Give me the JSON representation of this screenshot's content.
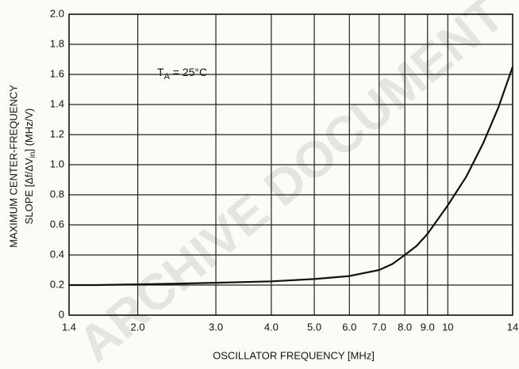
{
  "chart_data": {
    "type": "line",
    "xlabel": "OSCILLATOR FREQUENCY [MHz]",
    "ylabel": {
      "line1": "MAXIMUM CENTER-FREQUENCY",
      "line2_start": "SLOPE [Δf/ΔV",
      "line2_sub": "in",
      "line2_end": "] (MHz/V)"
    },
    "annotation": {
      "symbol": "T",
      "subscript": "A",
      "rest": " = 25°C"
    },
    "watermark": "ARCHIVE DOCUMENT",
    "xscale": "log",
    "grid": true,
    "xlim": [
      1.4,
      14
    ],
    "ylim": [
      0,
      2
    ],
    "xticks": [
      1.4,
      {
        "value": 2,
        "label": "2.0"
      },
      {
        "value": 3,
        "label": "3.0"
      },
      {
        "value": 4,
        "label": "4.0"
      },
      {
        "value": 5,
        "label": "5.0"
      },
      {
        "value": 6,
        "label": "6.0"
      },
      {
        "value": 7,
        "label": "7.0"
      },
      {
        "value": 8,
        "label": "8.0"
      },
      {
        "value": 9,
        "label": "9.0"
      },
      10,
      14
    ],
    "yticks": [
      0,
      0.2,
      0.4,
      0.6,
      0.8,
      {
        "value": 1,
        "label": "1.0"
      },
      1.2,
      1.4,
      1.6,
      1.8,
      {
        "value": 2,
        "label": "2.0"
      }
    ],
    "x": [
      1.4,
      1.6,
      2,
      2.5,
      3,
      4,
      5,
      6,
      7,
      7.5,
      8,
      8.5,
      9,
      10,
      11,
      12,
      13,
      14
    ],
    "series": [
      {
        "color": "#111111",
        "values": [
          0.2,
          0.2,
          0.205,
          0.21,
          0.215,
          0.225,
          0.24,
          0.26,
          0.3,
          0.34,
          0.4,
          0.46,
          0.54,
          0.73,
          0.92,
          1.14,
          1.38,
          1.65
        ]
      }
    ]
  }
}
